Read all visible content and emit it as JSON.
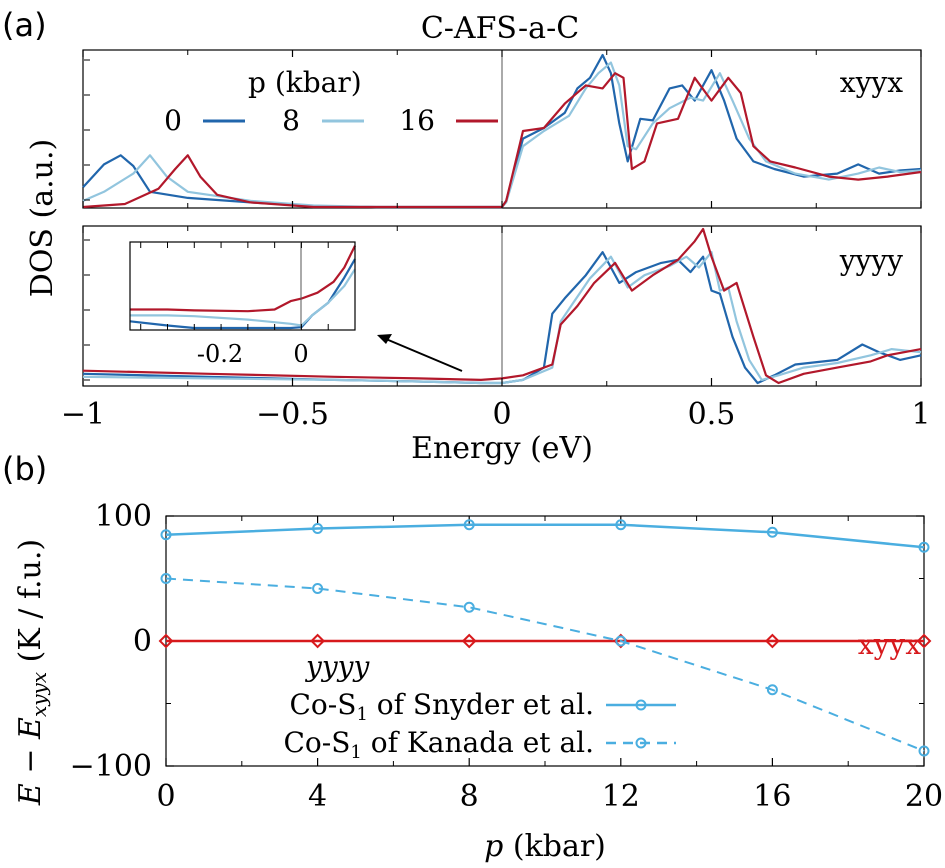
{
  "colors": {
    "p0": "#2166ac",
    "p8": "#92c5de",
    "p16": "#b2182b",
    "snyder": "#4aaee0",
    "xyyx": "#d7191c",
    "axis": "#000000",
    "zero_line": "#666666"
  },
  "panel_a": {
    "label": "(a)",
    "title": "C-AFS-a-C",
    "ylabel": "DOS (a.u.)",
    "xlabel": "Energy (eV)",
    "legend_title": "p (kbar)",
    "legend_items": [
      "0",
      "8",
      "16"
    ],
    "xticks": [
      "−1",
      "−0.5",
      "0",
      "0.5",
      "1"
    ],
    "inset_xticks": [
      "-0.2",
      "0"
    ]
  },
  "panel_b": {
    "label": "(b)",
    "ylabel_main": "E − E",
    "ylabel_sub": "xyyx",
    "ylabel_units": " (K / f.u.)",
    "xlabel_var": "p",
    "xlabel_units": " (kbar)",
    "xyyx_label": "xyyx",
    "yyyy_label": "yyyy",
    "legend_snyder_a": "Co-S",
    "legend_snyder_sub": "1",
    "legend_snyder_b": " of Snyder et al.",
    "legend_kanada_a": "Co-S",
    "legend_kanada_sub": "1",
    "legend_kanada_b": " of Kanada et al.",
    "xticks": [
      "0",
      "4",
      "8",
      "12",
      "16",
      "20"
    ],
    "yticks": [
      "100",
      "0",
      "−100"
    ]
  },
  "chart_data": [
    {
      "type": "line",
      "title": "C-AFS-a-C",
      "panel": "xyyx",
      "xlabel": "Energy (eV)",
      "ylabel": "DOS (a.u.)",
      "xlim": [
        -1,
        1
      ],
      "legend_title": "p (kbar)",
      "legend_position": "top-left",
      "series": [
        {
          "name": "0",
          "color": "#2166ac",
          "x": [
            -1.0,
            -0.95,
            -0.91,
            -0.88,
            -0.84,
            -0.75,
            -0.6,
            -0.45,
            -0.3,
            -0.1,
            0.0,
            0.01,
            0.05,
            0.1,
            0.15,
            0.18,
            0.21,
            0.24,
            0.26,
            0.28,
            0.3,
            0.33,
            0.36,
            0.4,
            0.43,
            0.46,
            0.5,
            0.53,
            0.56,
            0.6,
            0.65,
            0.72,
            0.8,
            0.85,
            0.9,
            0.95,
            1.0
          ],
          "y": [
            0.13,
            0.28,
            0.34,
            0.27,
            0.1,
            0.06,
            0.03,
            0.005,
            0.0,
            0.0,
            0.0,
            0.04,
            0.45,
            0.52,
            0.62,
            0.78,
            0.85,
            1.0,
            0.88,
            0.55,
            0.3,
            0.58,
            0.57,
            0.78,
            0.8,
            0.7,
            0.9,
            0.7,
            0.45,
            0.3,
            0.25,
            0.2,
            0.22,
            0.28,
            0.22,
            0.24,
            0.25
          ]
        },
        {
          "name": "8",
          "color": "#92c5de",
          "x": [
            -1.0,
            -0.95,
            -0.88,
            -0.84,
            -0.8,
            -0.75,
            -0.6,
            -0.45,
            -0.3,
            -0.1,
            0.0,
            0.01,
            0.05,
            0.1,
            0.16,
            0.2,
            0.23,
            0.26,
            0.28,
            0.3,
            0.32,
            0.36,
            0.4,
            0.45,
            0.48,
            0.52,
            0.55,
            0.59,
            0.63,
            0.7,
            0.78,
            0.85,
            0.9,
            0.95,
            1.0
          ],
          "y": [
            0.04,
            0.1,
            0.22,
            0.34,
            0.2,
            0.1,
            0.04,
            0.01,
            0.0,
            0.0,
            0.0,
            0.03,
            0.4,
            0.5,
            0.6,
            0.78,
            0.88,
            0.95,
            0.8,
            0.4,
            0.38,
            0.55,
            0.65,
            0.72,
            0.7,
            0.88,
            0.7,
            0.45,
            0.3,
            0.22,
            0.18,
            0.22,
            0.26,
            0.23,
            0.24
          ]
        },
        {
          "name": "16",
          "color": "#b2182b",
          "x": [
            -1.0,
            -0.9,
            -0.82,
            -0.78,
            -0.75,
            -0.72,
            -0.68,
            -0.6,
            -0.45,
            -0.3,
            -0.1,
            0.0,
            0.01,
            0.05,
            0.1,
            0.15,
            0.2,
            0.24,
            0.27,
            0.29,
            0.31,
            0.34,
            0.37,
            0.42,
            0.46,
            0.5,
            0.54,
            0.57,
            0.6,
            0.64,
            0.7,
            0.78,
            0.85,
            0.92,
            1.0
          ],
          "y": [
            0.0,
            0.02,
            0.12,
            0.25,
            0.34,
            0.2,
            0.08,
            0.03,
            0.0,
            0.0,
            0.0,
            0.0,
            0.04,
            0.5,
            0.52,
            0.68,
            0.8,
            0.78,
            0.88,
            0.85,
            0.25,
            0.3,
            0.55,
            0.58,
            0.85,
            0.7,
            0.85,
            0.75,
            0.4,
            0.3,
            0.26,
            0.2,
            0.18,
            0.2,
            0.23
          ]
        }
      ]
    },
    {
      "type": "line",
      "panel": "yyyy",
      "xlabel": "Energy (eV)",
      "ylabel": "DOS (a.u.)",
      "xlim": [
        -1,
        1
      ],
      "series": [
        {
          "name": "0",
          "color": "#2166ac",
          "x": [
            -1.0,
            -0.7,
            -0.4,
            -0.2,
            -0.05,
            0.0,
            0.05,
            0.1,
            0.12,
            0.15,
            0.2,
            0.24,
            0.28,
            0.32,
            0.38,
            0.42,
            0.45,
            0.48,
            0.5,
            0.52,
            0.55,
            0.58,
            0.61,
            0.65,
            0.7,
            0.8,
            0.86,
            0.9,
            0.95,
            1.0
          ],
          "y": [
            0.06,
            0.04,
            0.02,
            0.01,
            0.0,
            0.0,
            0.02,
            0.1,
            0.45,
            0.55,
            0.7,
            0.85,
            0.65,
            0.72,
            0.78,
            0.8,
            0.72,
            0.82,
            0.6,
            0.58,
            0.3,
            0.1,
            0.0,
            0.05,
            0.12,
            0.15,
            0.25,
            0.2,
            0.15,
            0.18
          ]
        },
        {
          "name": "8",
          "color": "#92c5de",
          "x": [
            -1.0,
            -0.7,
            -0.4,
            -0.2,
            -0.05,
            0.0,
            0.05,
            0.12,
            0.14,
            0.17,
            0.21,
            0.26,
            0.3,
            0.34,
            0.4,
            0.44,
            0.47,
            0.5,
            0.52,
            0.54,
            0.56,
            0.59,
            0.62,
            0.66,
            0.72,
            0.8,
            0.88,
            0.93,
            1.0
          ],
          "y": [
            0.04,
            0.03,
            0.02,
            0.01,
            0.0,
            0.0,
            0.02,
            0.1,
            0.4,
            0.52,
            0.68,
            0.82,
            0.62,
            0.7,
            0.76,
            0.82,
            0.75,
            0.85,
            0.6,
            0.62,
            0.4,
            0.15,
            0.02,
            0.05,
            0.1,
            0.13,
            0.18,
            0.22,
            0.2
          ]
        },
        {
          "name": "16",
          "color": "#b2182b",
          "x": [
            -1.0,
            -0.7,
            -0.4,
            -0.2,
            -0.05,
            0.0,
            0.05,
            0.12,
            0.14,
            0.18,
            0.22,
            0.27,
            0.31,
            0.36,
            0.42,
            0.46,
            0.48,
            0.5,
            0.53,
            0.56,
            0.6,
            0.63,
            0.66,
            0.72,
            0.8,
            0.88,
            0.92,
            0.96,
            1.0
          ],
          "y": [
            0.08,
            0.06,
            0.04,
            0.03,
            0.02,
            0.03,
            0.05,
            0.12,
            0.38,
            0.5,
            0.65,
            0.78,
            0.6,
            0.7,
            0.8,
            0.92,
            1.0,
            0.82,
            0.6,
            0.65,
            0.3,
            0.05,
            0.0,
            0.06,
            0.1,
            0.14,
            0.18,
            0.2,
            0.22
          ]
        }
      ]
    },
    {
      "type": "line",
      "panel": "inset",
      "xlim": [
        -0.32,
        0.1
      ],
      "series": [
        {
          "name": "0",
          "color": "#2166ac",
          "x": [
            -0.32,
            -0.25,
            -0.2,
            -0.1,
            -0.02,
            0.0,
            0.02,
            0.05,
            0.08,
            0.1
          ],
          "y": [
            0.08,
            0.03,
            0.0,
            0.0,
            0.0,
            0.01,
            0.15,
            0.3,
            0.6,
            0.82
          ]
        },
        {
          "name": "8",
          "color": "#92c5de",
          "x": [
            -0.32,
            -0.25,
            -0.2,
            -0.1,
            -0.02,
            0.0,
            0.02,
            0.05,
            0.08,
            0.1
          ],
          "y": [
            0.15,
            0.15,
            0.14,
            0.1,
            0.05,
            0.03,
            0.15,
            0.3,
            0.5,
            0.7
          ]
        },
        {
          "name": "16",
          "color": "#b2182b",
          "x": [
            -0.32,
            -0.25,
            -0.2,
            -0.1,
            -0.05,
            -0.02,
            0.0,
            0.03,
            0.06,
            0.08,
            0.1
          ],
          "y": [
            0.22,
            0.22,
            0.21,
            0.2,
            0.22,
            0.32,
            0.35,
            0.42,
            0.55,
            0.72,
            0.98
          ]
        }
      ]
    },
    {
      "type": "line",
      "panel": "b",
      "xlabel": "p (kbar)",
      "ylabel": "E − E_xyyx (K / f.u.)",
      "xlim": [
        0,
        20
      ],
      "ylim": [
        -100,
        100
      ],
      "legend_position": "bottom-right",
      "series": [
        {
          "name": "Co-S1 of Snyder et al.",
          "color": "#4aaee0",
          "style": "solid",
          "x": [
            0,
            4,
            8,
            12,
            16,
            20
          ],
          "y": [
            85,
            90,
            93,
            93,
            87,
            75
          ]
        },
        {
          "name": "Co-S1 of Kanada et al.",
          "color": "#4aaee0",
          "style": "dashed",
          "x": [
            0,
            4,
            8,
            12,
            16,
            20
          ],
          "y": [
            50,
            42,
            27,
            0,
            -39,
            -88
          ]
        },
        {
          "name": "xyyx",
          "color": "#d7191c",
          "style": "solid",
          "x": [
            0,
            4,
            8,
            12,
            16,
            20
          ],
          "y": [
            0,
            0,
            0,
            0,
            0,
            0
          ]
        }
      ]
    }
  ]
}
